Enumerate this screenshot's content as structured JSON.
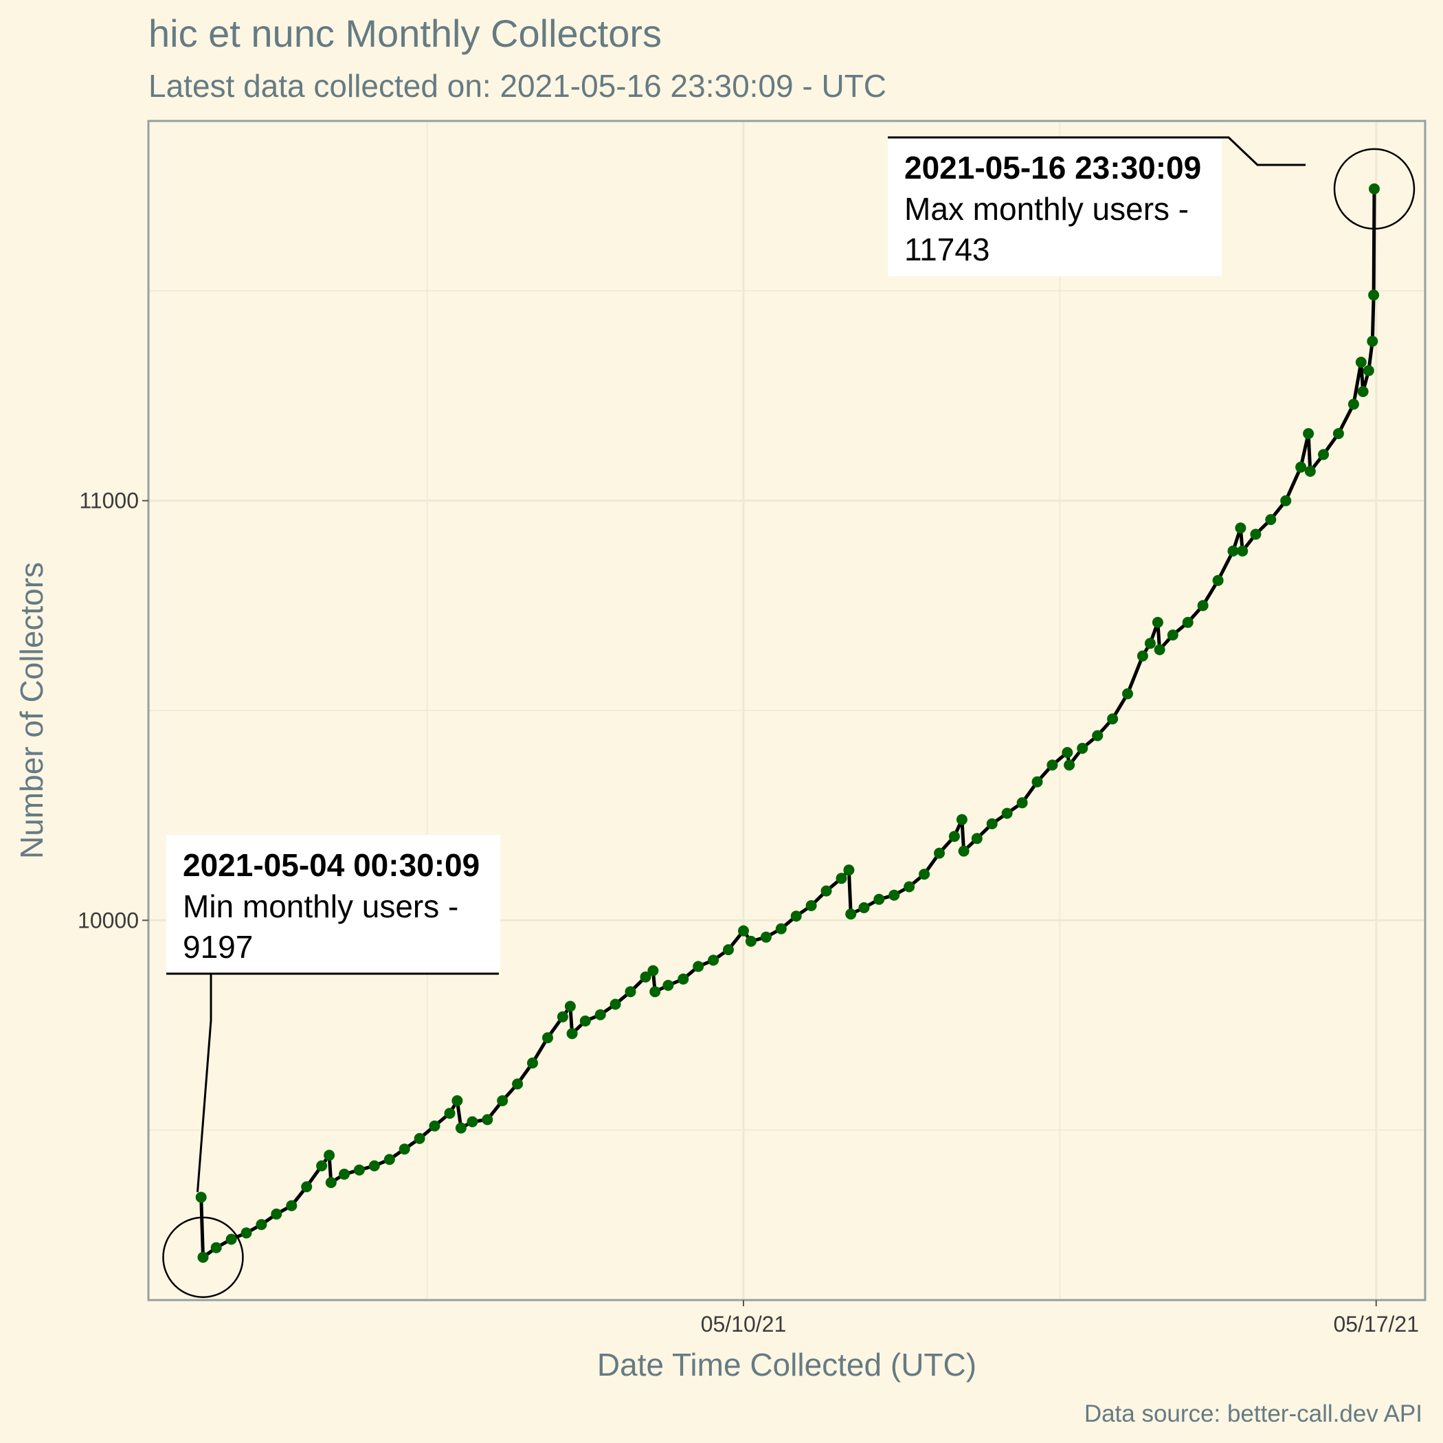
{
  "chart_data": {
    "type": "line",
    "title": "hic et nunc Monthly Collectors",
    "subtitle": "Latest data collected on: 2021-05-16 23:30:09  - UTC",
    "xlabel": "Date Time Collected (UTC)",
    "ylabel": "Number of Collectors",
    "caption": "Data source: better-call.dev API",
    "x_ticks": [
      {
        "label": "05/10/21",
        "date": "2021-05-10"
      },
      {
        "label": "05/17/21",
        "date": "2021-05-17"
      }
    ],
    "y_ticks": [
      10000,
      11000
    ],
    "xlim": [
      "2021-05-03T10:00",
      "2021-05-17T13:00"
    ],
    "ylim": [
      9095,
      11905
    ],
    "grid": true,
    "line_color": "#000000",
    "point_color": "#006400",
    "points": [
      [
        "2021-05-04T00:00",
        9340
      ],
      [
        "2021-05-04T00:30",
        9197
      ],
      [
        "2021-05-04T04:00",
        9220
      ],
      [
        "2021-05-04T08:00",
        9240
      ],
      [
        "2021-05-04T12:00",
        9255
      ],
      [
        "2021-05-04T16:00",
        9275
      ],
      [
        "2021-05-04T20:00",
        9300
      ],
      [
        "2021-05-05T00:00",
        9320
      ],
      [
        "2021-05-05T04:00",
        9365
      ],
      [
        "2021-05-05T08:00",
        9415
      ],
      [
        "2021-05-05T10:00",
        9440
      ],
      [
        "2021-05-05T10:30",
        9375
      ],
      [
        "2021-05-05T14:00",
        9395
      ],
      [
        "2021-05-05T18:00",
        9405
      ],
      [
        "2021-05-05T22:00",
        9415
      ],
      [
        "2021-05-06T02:00",
        9430
      ],
      [
        "2021-05-06T06:00",
        9455
      ],
      [
        "2021-05-06T10:00",
        9480
      ],
      [
        "2021-05-06T14:00",
        9510
      ],
      [
        "2021-05-06T18:00",
        9540
      ],
      [
        "2021-05-06T20:00",
        9570
      ],
      [
        "2021-05-06T21:00",
        9505
      ],
      [
        "2021-05-07T00:00",
        9520
      ],
      [
        "2021-05-07T04:00",
        9525
      ],
      [
        "2021-05-07T08:00",
        9570
      ],
      [
        "2021-05-07T12:00",
        9610
      ],
      [
        "2021-05-07T16:00",
        9660
      ],
      [
        "2021-05-07T20:00",
        9720
      ],
      [
        "2021-05-08T00:00",
        9770
      ],
      [
        "2021-05-08T02:00",
        9795
      ],
      [
        "2021-05-08T02:30",
        9730
      ],
      [
        "2021-05-08T06:00",
        9760
      ],
      [
        "2021-05-08T10:00",
        9775
      ],
      [
        "2021-05-08T14:00",
        9800
      ],
      [
        "2021-05-08T18:00",
        9830
      ],
      [
        "2021-05-08T22:00",
        9865
      ],
      [
        "2021-05-09T00:00",
        9880
      ],
      [
        "2021-05-09T00:30",
        9830
      ],
      [
        "2021-05-09T04:00",
        9845
      ],
      [
        "2021-05-09T08:00",
        9860
      ],
      [
        "2021-05-09T12:00",
        9890
      ],
      [
        "2021-05-09T16:00",
        9905
      ],
      [
        "2021-05-09T20:00",
        9930
      ],
      [
        "2021-05-10T00:00",
        9975
      ],
      [
        "2021-05-10T02:00",
        9950
      ],
      [
        "2021-05-10T06:00",
        9960
      ],
      [
        "2021-05-10T10:00",
        9980
      ],
      [
        "2021-05-10T14:00",
        10010
      ],
      [
        "2021-05-10T18:00",
        10035
      ],
      [
        "2021-05-10T22:00",
        10070
      ],
      [
        "2021-05-11T02:00",
        10100
      ],
      [
        "2021-05-11T04:00",
        10120
      ],
      [
        "2021-05-11T04:30",
        10015
      ],
      [
        "2021-05-11T08:00",
        10030
      ],
      [
        "2021-05-11T12:00",
        10050
      ],
      [
        "2021-05-11T16:00",
        10060
      ],
      [
        "2021-05-11T20:00",
        10080
      ],
      [
        "2021-05-12T00:00",
        10110
      ],
      [
        "2021-05-12T04:00",
        10160
      ],
      [
        "2021-05-12T08:00",
        10200
      ],
      [
        "2021-05-12T10:00",
        10240
      ],
      [
        "2021-05-12T10:30",
        10165
      ],
      [
        "2021-05-12T14:00",
        10195
      ],
      [
        "2021-05-12T18:00",
        10230
      ],
      [
        "2021-05-12T22:00",
        10255
      ],
      [
        "2021-05-13T02:00",
        10280
      ],
      [
        "2021-05-13T06:00",
        10330
      ],
      [
        "2021-05-13T10:00",
        10370
      ],
      [
        "2021-05-13T14:00",
        10400
      ],
      [
        "2021-05-13T14:30",
        10370
      ],
      [
        "2021-05-13T18:00",
        10410
      ],
      [
        "2021-05-13T22:00",
        10440
      ],
      [
        "2021-05-14T02:00",
        10480
      ],
      [
        "2021-05-14T06:00",
        10540
      ],
      [
        "2021-05-14T10:00",
        10630
      ],
      [
        "2021-05-14T12:00",
        10660
      ],
      [
        "2021-05-14T14:00",
        10710
      ],
      [
        "2021-05-14T14:30",
        10645
      ],
      [
        "2021-05-14T18:00",
        10680
      ],
      [
        "2021-05-14T22:00",
        10710
      ],
      [
        "2021-05-15T02:00",
        10750
      ],
      [
        "2021-05-15T06:00",
        10810
      ],
      [
        "2021-05-15T10:00",
        10880
      ],
      [
        "2021-05-15T12:00",
        10935
      ],
      [
        "2021-05-15T12:30",
        10880
      ],
      [
        "2021-05-15T16:00",
        10920
      ],
      [
        "2021-05-15T20:00",
        10955
      ],
      [
        "2021-05-16T00:00",
        11000
      ],
      [
        "2021-05-16T04:00",
        11080
      ],
      [
        "2021-05-16T06:00",
        11160
      ],
      [
        "2021-05-16T06:30",
        11070
      ],
      [
        "2021-05-16T10:00",
        11110
      ],
      [
        "2021-05-16T14:00",
        11160
      ],
      [
        "2021-05-16T18:00",
        11230
      ],
      [
        "2021-05-16T20:00",
        11330
      ],
      [
        "2021-05-16T20:30",
        11260
      ],
      [
        "2021-05-16T22:00",
        11310
      ],
      [
        "2021-05-16T23:00",
        11380
      ],
      [
        "2021-05-16T23:20",
        11490
      ],
      [
        "2021-05-16T23:30",
        11743
      ]
    ],
    "annotations": [
      {
        "role": "min",
        "title": "2021-05-04 00:30:09",
        "line1": "Min monthly users -",
        "line2": "9197",
        "x": "2021-05-04T00:30",
        "y": 9197
      },
      {
        "role": "max",
        "title": "2021-05-16 23:30:09",
        "line1": "Max monthly users -",
        "line2": "11743",
        "x": "2021-05-16T23:30",
        "y": 11743
      }
    ]
  }
}
